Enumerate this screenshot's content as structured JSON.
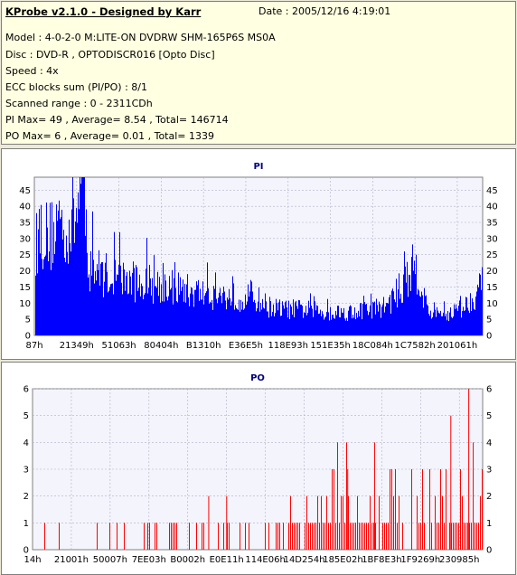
{
  "info": {
    "title": "KProbe v2.1.0 - Designed by Karr",
    "date": "Date : 2005/12/16 4:19:01",
    "lines": [
      "Model : 4-0-2-0 M:LITE-ON DVDRW SHM-165P6S MS0A",
      "Disc : DVD-R , OPTODISCR016 [Opto Disc]",
      "Speed : 4x",
      "ECC blocks sum (PI/PO) : 8/1",
      "Scanned range : 0 - 2311CDh",
      "PI Max= 49 , Average= 8.54 , Total= 146714",
      "PO Max= 6 , Average= 0.01 , Total= 1339"
    ]
  },
  "colors": {
    "bar": "#0000ff",
    "po_bar": "#ff0000",
    "plot_bg": "#f4f4fc",
    "grid": "#b0b0c8",
    "title": "#000080"
  },
  "chart_data": [
    {
      "type": "bar",
      "title": "PI",
      "ylim": [
        0,
        49
      ],
      "yticks": [
        0,
        5,
        10,
        15,
        20,
        25,
        30,
        35,
        40,
        45
      ],
      "xticks": [
        "87h",
        "21349h",
        "51063h",
        "80404h",
        "B1310h",
        "E36E5h",
        "118E93h",
        "151E35h",
        "18C084h",
        "1C7582h",
        "201061h"
      ],
      "grid": true,
      "profile": [
        [
          0,
          30
        ],
        [
          0.01,
          37
        ],
        [
          0.03,
          33
        ],
        [
          0.05,
          40
        ],
        [
          0.07,
          36
        ],
        [
          0.09,
          42
        ],
        [
          0.105,
          49
        ],
        [
          0.115,
          33
        ],
        [
          0.12,
          24
        ],
        [
          0.14,
          22
        ],
        [
          0.2,
          19
        ],
        [
          0.25,
          18
        ],
        [
          0.3,
          17
        ],
        [
          0.35,
          15
        ],
        [
          0.4,
          14
        ],
        [
          0.45,
          13
        ],
        [
          0.48,
          14
        ],
        [
          0.5,
          12
        ],
        [
          0.52,
          10
        ],
        [
          0.55,
          9
        ],
        [
          0.6,
          9
        ],
        [
          0.65,
          8
        ],
        [
          0.7,
          8
        ],
        [
          0.75,
          9
        ],
        [
          0.78,
          10
        ],
        [
          0.8,
          13
        ],
        [
          0.82,
          17
        ],
        [
          0.84,
          22
        ],
        [
          0.85,
          25
        ],
        [
          0.86,
          17
        ],
        [
          0.87,
          12
        ],
        [
          0.88,
          8
        ],
        [
          0.9,
          7
        ],
        [
          0.93,
          8
        ],
        [
          0.96,
          10
        ],
        [
          0.98,
          14
        ],
        [
          1.0,
          18
        ]
      ]
    },
    {
      "type": "bar",
      "title": "PO",
      "ylim": [
        0,
        6
      ],
      "yticks": [
        0,
        1,
        2,
        3,
        4,
        5,
        6
      ],
      "xticks": [
        "14h",
        "21001h",
        "50007h",
        "7EE03h",
        "B0002h",
        "E0E11h",
        "114E06h",
        "14D254h",
        "185E02h",
        "1BF8E3h",
        "1F9269h",
        "230985h"
      ],
      "grid": true,
      "profile": [
        [
          0,
          0.1
        ],
        [
          0.1,
          0.15
        ],
        [
          0.2,
          0.15
        ],
        [
          0.3,
          0.2
        ],
        [
          0.4,
          0.3
        ],
        [
          0.45,
          0.35
        ],
        [
          0.5,
          0.5
        ],
        [
          0.55,
          0.7
        ],
        [
          0.6,
          0.9
        ],
        [
          0.65,
          1.0
        ],
        [
          0.7,
          1.1
        ],
        [
          0.75,
          0.9
        ],
        [
          0.8,
          0.7
        ],
        [
          0.85,
          0.6
        ],
        [
          0.9,
          0.7
        ],
        [
          0.95,
          1.0
        ],
        [
          1.0,
          1.2
        ]
      ]
    }
  ]
}
